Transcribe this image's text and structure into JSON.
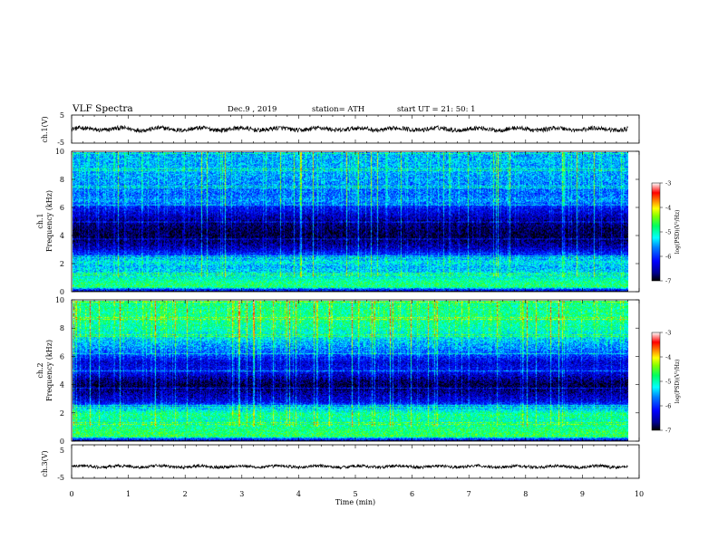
{
  "header": {
    "title": "VLF  Spectra",
    "date": "Dec.9  , 2019",
    "station": "station= ATH",
    "start": "start  UT  =    21: 50: 1"
  },
  "chart_data": [
    {
      "type": "line",
      "panel": "ch1-waveform",
      "ylabel": "ch.1(V)",
      "yticks": [
        "5",
        "-5"
      ],
      "ylim": [
        -5,
        5
      ],
      "xlim": [
        0,
        10
      ],
      "data_extent_min": 9.8,
      "trace_color": "#000000",
      "approx_level": 0
    },
    {
      "type": "heatmap",
      "panel": "ch1-spectrogram",
      "ylabel_line1": "ch.1",
      "ylabel_line2": "Frequency (kHz)",
      "yticks": [
        "0",
        "2",
        "4",
        "6",
        "8",
        "10"
      ],
      "ylim": [
        0,
        10
      ],
      "xlim": [
        0,
        10
      ],
      "data_extent_min": 9.8,
      "colorbar": {
        "label": "log(PSD)(V²/Hz)",
        "ticks": [
          "-3",
          "-4",
          "-5",
          "-6",
          "-7"
        ],
        "range": [
          -7,
          -3
        ]
      },
      "band_profile_khz": [
        {
          "f": 0.0,
          "level": -7.0
        },
        {
          "f": 0.3,
          "level": -4.8
        },
        {
          "f": 0.7,
          "level": -4.9
        },
        {
          "f": 1.2,
          "level": -5.3
        },
        {
          "f": 1.8,
          "level": -5.5
        },
        {
          "f": 2.1,
          "level": -5.2
        },
        {
          "f": 2.5,
          "level": -5.8
        },
        {
          "f": 3.0,
          "level": -6.4
        },
        {
          "f": 3.5,
          "level": -6.7
        },
        {
          "f": 4.0,
          "level": -6.9
        },
        {
          "f": 4.6,
          "level": -6.8
        },
        {
          "f": 5.2,
          "level": -6.6
        },
        {
          "f": 6.0,
          "level": -6.2
        },
        {
          "f": 6.5,
          "level": -5.6
        },
        {
          "f": 7.0,
          "level": -5.8
        },
        {
          "f": 8.0,
          "level": -5.6
        },
        {
          "f": 9.0,
          "level": -5.5
        },
        {
          "f": 10.0,
          "level": -5.5
        }
      ]
    },
    {
      "type": "heatmap",
      "panel": "ch2-spectrogram",
      "ylabel_line1": "ch.2",
      "ylabel_line2": "Frequency (kHz)",
      "yticks": [
        "0",
        "2",
        "4",
        "6",
        "8",
        "10"
      ],
      "ylim": [
        0,
        10
      ],
      "xlim": [
        0,
        10
      ],
      "data_extent_min": 9.8,
      "colorbar": {
        "label": "log(PSD)(V²/Hz)",
        "ticks": [
          "-3",
          "-4",
          "-5",
          "-6",
          "-7"
        ],
        "range": [
          -7,
          -3
        ]
      },
      "band_profile_khz": [
        {
          "f": 0.0,
          "level": -7.0
        },
        {
          "f": 0.3,
          "level": -4.7
        },
        {
          "f": 0.8,
          "level": -4.8
        },
        {
          "f": 1.3,
          "level": -5.1
        },
        {
          "f": 1.9,
          "level": -4.9
        },
        {
          "f": 2.3,
          "level": -5.4
        },
        {
          "f": 2.8,
          "level": -6.3
        },
        {
          "f": 3.4,
          "level": -6.6
        },
        {
          "f": 4.0,
          "level": -6.9
        },
        {
          "f": 4.5,
          "level": -6.6
        },
        {
          "f": 5.0,
          "level": -6.2
        },
        {
          "f": 5.6,
          "level": -6.4
        },
        {
          "f": 6.3,
          "level": -5.8
        },
        {
          "f": 7.0,
          "level": -5.5
        },
        {
          "f": 8.0,
          "level": -5.0
        },
        {
          "f": 9.0,
          "level": -4.9
        },
        {
          "f": 10.0,
          "level": -4.9
        }
      ]
    },
    {
      "type": "line",
      "panel": "ch3-waveform",
      "ylabel": "ch.3(V)",
      "yticks": [
        "5",
        "-5"
      ],
      "ylim": [
        -5,
        5
      ],
      "xlim": [
        0,
        10
      ],
      "data_extent_min": 9.8,
      "trace_color": "#000000",
      "approx_level": -1.5
    }
  ],
  "xaxis": {
    "label": "Time  (min)",
    "ticks": [
      "0",
      "1",
      "2",
      "3",
      "4",
      "5",
      "6",
      "7",
      "8",
      "9",
      "10"
    ]
  }
}
